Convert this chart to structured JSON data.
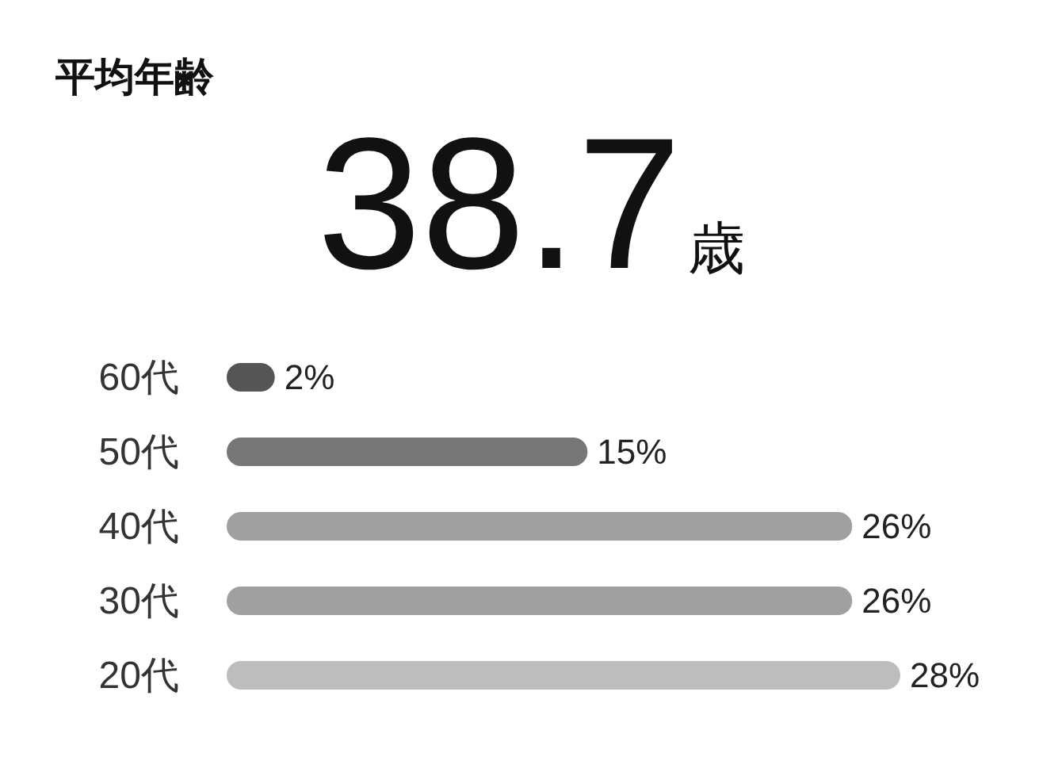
{
  "chart_data": {
    "type": "bar",
    "orientation": "horizontal",
    "title": "平均年齢",
    "subtitle": "38.7歳",
    "categories": [
      "60代",
      "50代",
      "40代",
      "30代",
      "20代"
    ],
    "values": [
      2,
      15,
      26,
      26,
      28
    ],
    "colors": [
      "#555555",
      "#777777",
      "#a0a0a0",
      "#a0a0a0",
      "#bdbdbd"
    ],
    "value_labels": [
      "2%",
      "15%",
      "26%",
      "26%",
      "28%"
    ]
  }
}
